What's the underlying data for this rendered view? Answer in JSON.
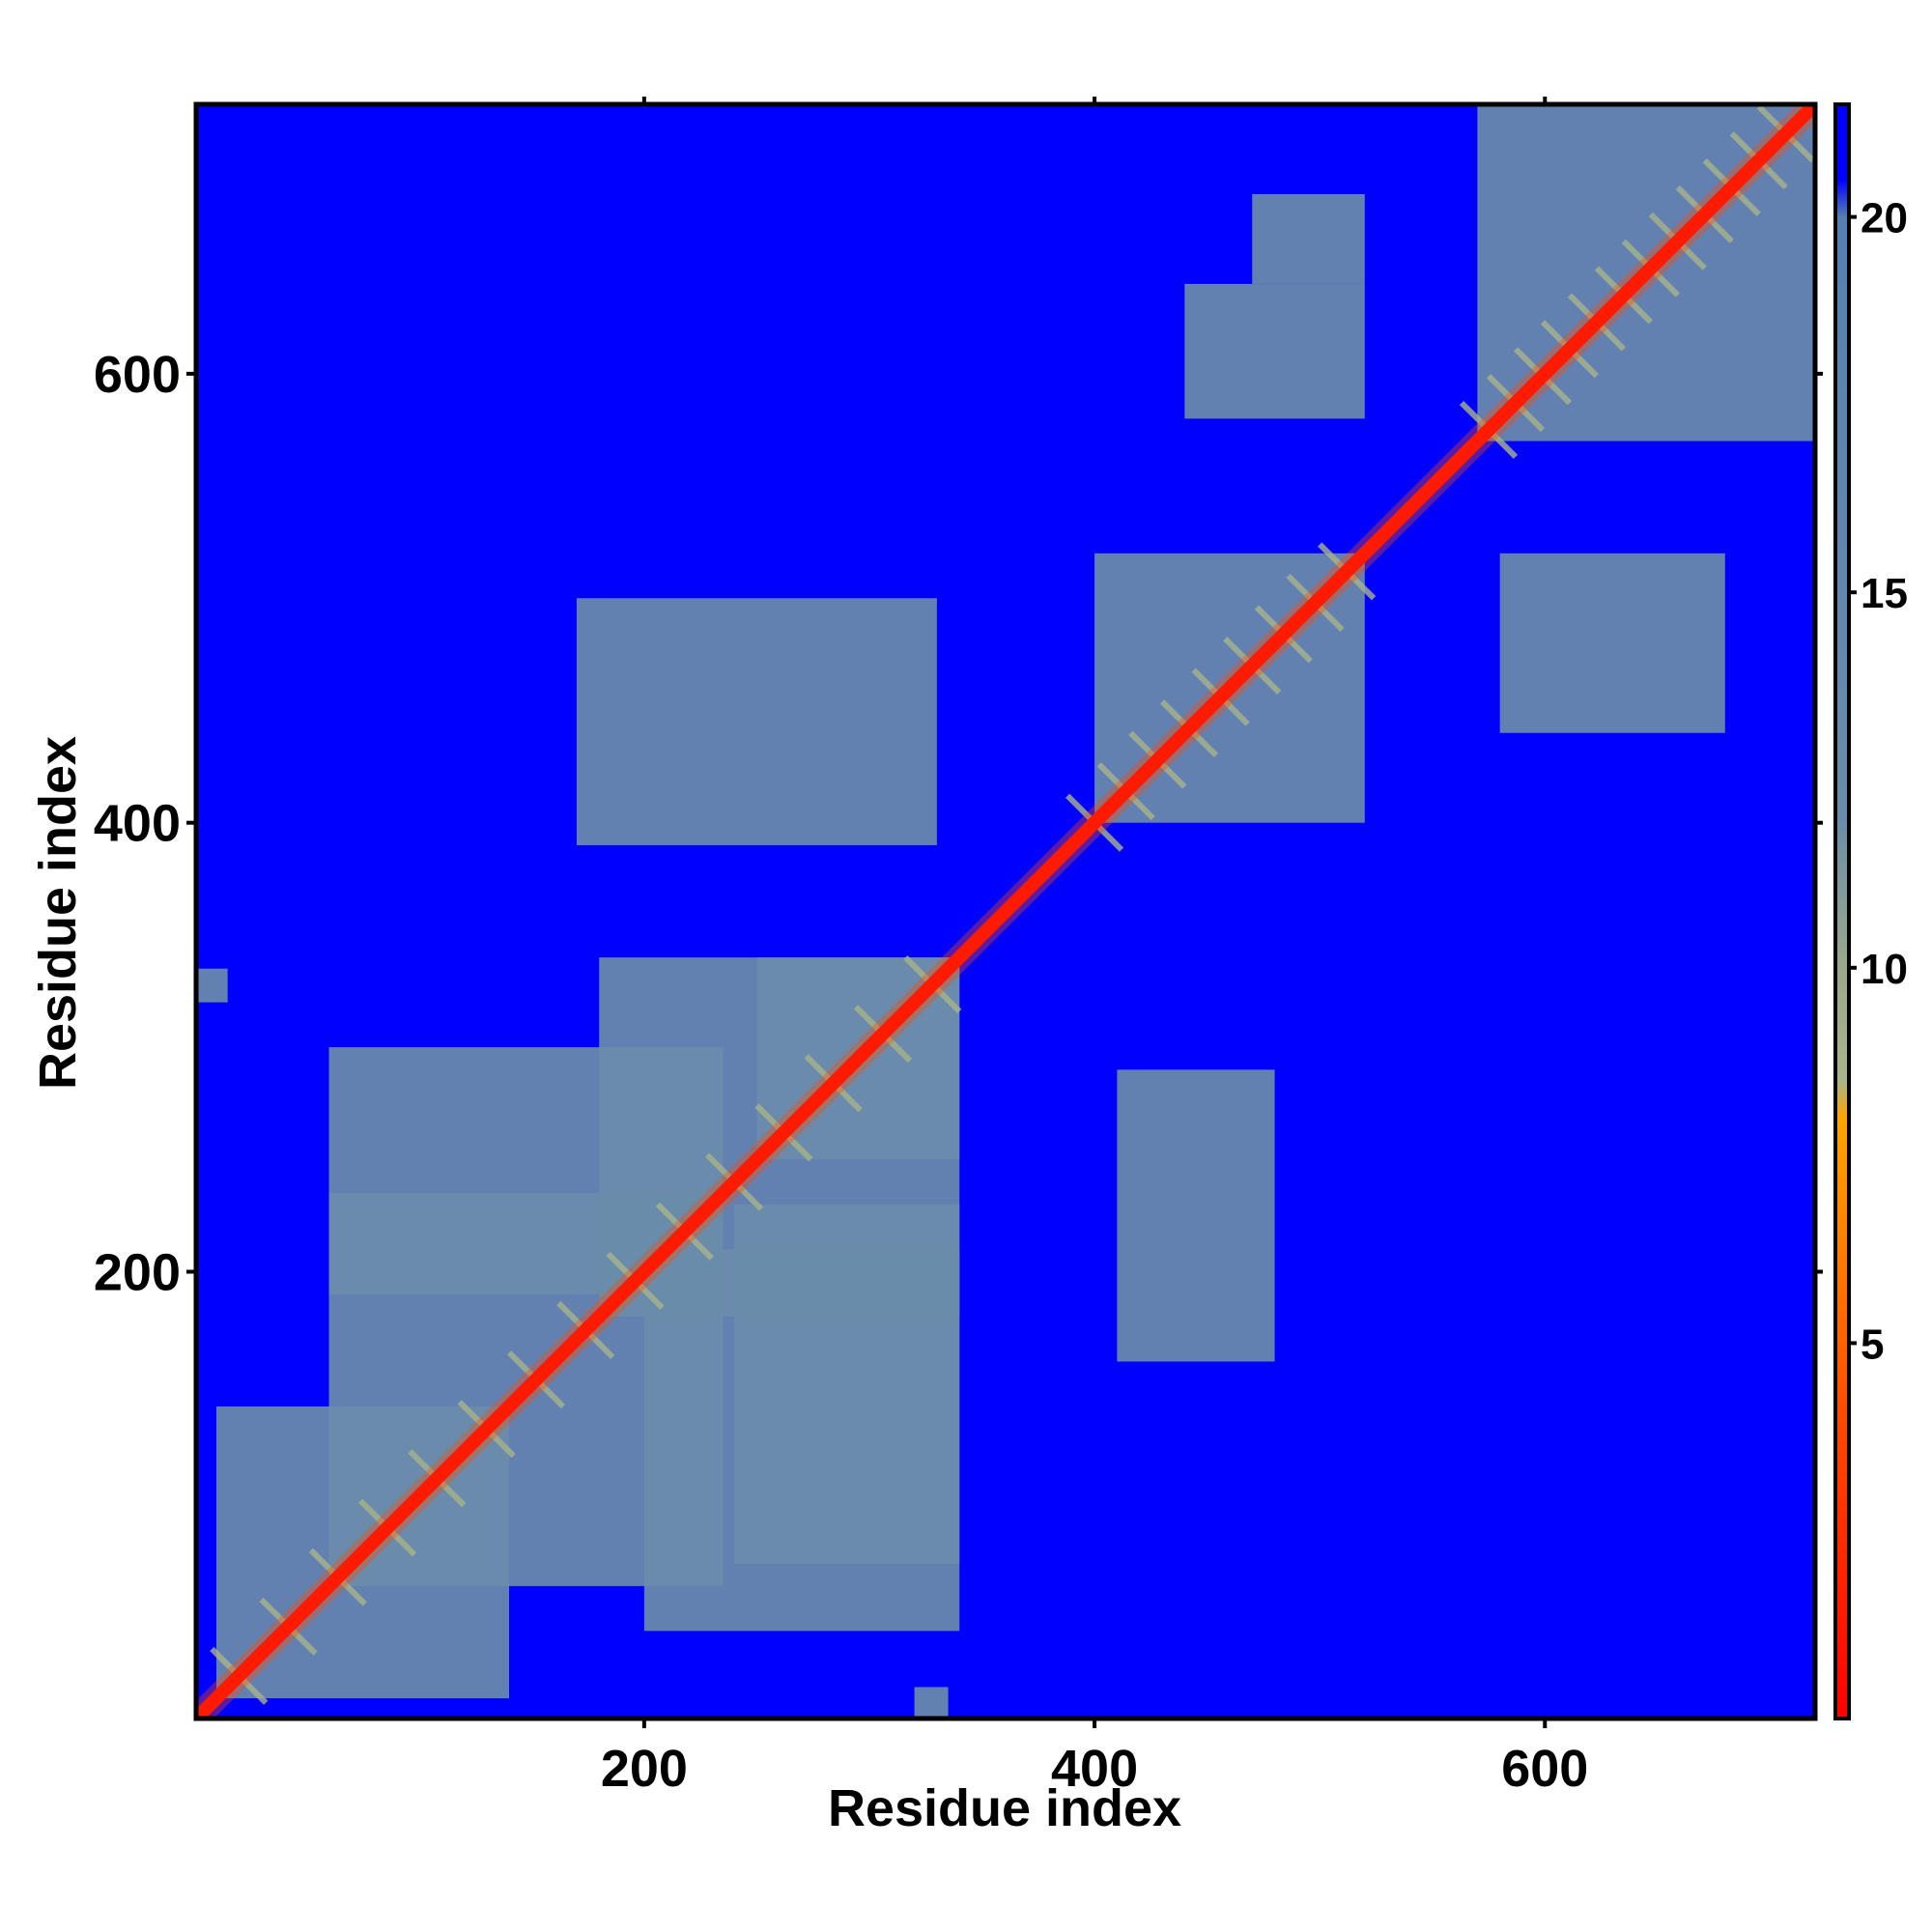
{
  "chart_data": {
    "type": "heatmap",
    "title": "",
    "xlabel": "Residue index",
    "ylabel": "Residue index",
    "xlim": [
      1,
      720
    ],
    "ylim": [
      1,
      720
    ],
    "xticks": [
      200,
      400,
      600
    ],
    "yticks": [
      200,
      400,
      600
    ],
    "colorbar": {
      "ticks": [
        5,
        10,
        15,
        20
      ],
      "range": [
        0,
        21.5
      ],
      "stops": [
        {
          "value": 0,
          "color": "#ff0000"
        },
        {
          "value": 4,
          "color": "#ff4a00"
        },
        {
          "value": 8,
          "color": "#ffa500"
        },
        {
          "value": 8.5,
          "color": "#a8b48a"
        },
        {
          "value": 10,
          "color": "#9aa98a"
        },
        {
          "value": 12,
          "color": "#6a8caa"
        },
        {
          "value": 20,
          "color": "#5580b0"
        },
        {
          "value": 20.5,
          "color": "#0000ff"
        },
        {
          "value": 21.5,
          "color": "#0000ff"
        }
      ]
    },
    "background_color": "#0000ff",
    "diagonal_color": "#ff0000",
    "contact_color": "#5a88b8",
    "diagonal_band": [
      {
        "start": 1,
        "end": 720,
        "half_width": 3
      }
    ],
    "contact_domains": [
      {
        "x": [
          10,
          140
        ],
        "y": [
          10,
          140
        ],
        "value": 15
      },
      {
        "x": [
          60,
          235
        ],
        "y": [
          60,
          235
        ],
        "value": 15
      },
      {
        "x": [
          180,
          340
        ],
        "y": [
          180,
          340
        ],
        "value": 15
      },
      {
        "x": [
          250,
          340
        ],
        "y": [
          250,
          340
        ],
        "value": 14
      },
      {
        "x": [
          60,
          235
        ],
        "y": [
          190,
          300
        ],
        "value": 16
      },
      {
        "x": [
          240,
          340
        ],
        "y": [
          70,
          230
        ],
        "value": 16
      },
      {
        "x": [
          200,
          340
        ],
        "y": [
          40,
          210
        ],
        "value": 17
      },
      {
        "x": [
          400,
          520
        ],
        "y": [
          400,
          520
        ],
        "value": 15
      },
      {
        "x": [
          570,
          720
        ],
        "y": [
          570,
          720
        ],
        "value": 15
      },
      {
        "x": [
          440,
          520
        ],
        "y": [
          580,
          640
        ],
        "value": 16
      },
      {
        "x": [
          470,
          520
        ],
        "y": [
          640,
          680
        ],
        "value": 17
      },
      {
        "x": [
          580,
          680
        ],
        "y": [
          440,
          520
        ],
        "value": 16
      },
      {
        "x": [
          1,
          15
        ],
        "y": [
          320,
          335
        ],
        "value": 15
      },
      {
        "x": [
          320,
          335
        ],
        "y": [
          1,
          15
        ],
        "value": 15
      },
      {
        "x": [
          410,
          480
        ],
        "y": [
          160,
          290
        ],
        "value": 18
      },
      {
        "x": [
          170,
          330
        ],
        "y": [
          390,
          500
        ],
        "value": 18
      }
    ]
  }
}
